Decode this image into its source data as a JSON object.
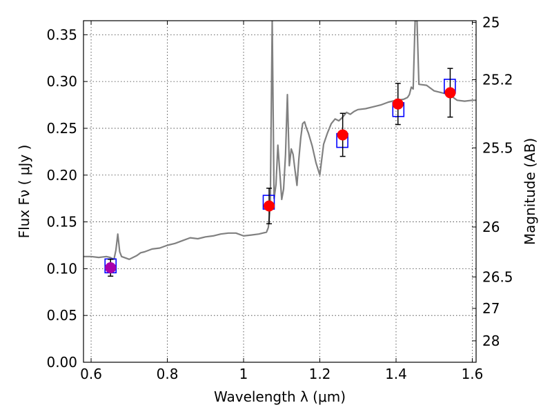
{
  "chart_data": {
    "type": "scatter",
    "title": "",
    "xlabel": "Wavelength  λ (μm)",
    "ylabel": "Flux  Fν  ( μJy )",
    "ylabel_right": "Magnitude (AB)",
    "xlim": [
      0.58,
      1.61
    ],
    "ylim": [
      0.0,
      0.365
    ],
    "grid": true,
    "x_ticks": [
      0.6,
      0.8,
      1.0,
      1.2,
      1.4,
      1.6
    ],
    "x_tick_labels": [
      "0.6",
      "0.8",
      "1",
      "1.2",
      "1.4",
      "1.6"
    ],
    "y_ticks": [
      0.0,
      0.05,
      0.1,
      0.15,
      0.2,
      0.25,
      0.3,
      0.35
    ],
    "y_tick_labels": [
      "0.00",
      "0.05",
      "0.10",
      "0.15",
      "0.20",
      "0.25",
      "0.30",
      "0.35"
    ],
    "right_ticks": [
      25,
      25.2,
      25.5,
      26,
      26.5,
      27,
      28
    ],
    "right_tick_labels": [
      "25",
      "25.2",
      "25.5",
      "26",
      "26.5",
      "27",
      "28"
    ],
    "colors": {
      "spectrum": "#808080",
      "model_box": "#0000ff",
      "observed": "#ff0000",
      "observed_first": "#aa00aa",
      "errorbar": "#000000"
    },
    "series": [
      {
        "kind": "line",
        "x": [
          0.58,
          0.6,
          0.62,
          0.64,
          0.65,
          0.66,
          0.665,
          0.67,
          0.675,
          0.68,
          0.7,
          0.72,
          0.73,
          0.74,
          0.76,
          0.78,
          0.8,
          0.82,
          0.84,
          0.86,
          0.88,
          0.9,
          0.92,
          0.94,
          0.96,
          0.98,
          1.0,
          1.02,
          1.04,
          1.06,
          1.065,
          1.07,
          1.075,
          1.08,
          1.085,
          1.09,
          1.1,
          1.105,
          1.11,
          1.115,
          1.12,
          1.125,
          1.13,
          1.135,
          1.14,
          1.145,
          1.15,
          1.155,
          1.16,
          1.165,
          1.17,
          1.18,
          1.19,
          1.2,
          1.21,
          1.22,
          1.23,
          1.24,
          1.25,
          1.26,
          1.27,
          1.28,
          1.29,
          1.3,
          1.32,
          1.34,
          1.36,
          1.38,
          1.4,
          1.42,
          1.43,
          1.435,
          1.44,
          1.445,
          1.45,
          1.455,
          1.46,
          1.48,
          1.5,
          1.52,
          1.54,
          1.56,
          1.58,
          1.6,
          1.61
        ],
        "y": [
          0.113,
          0.113,
          0.112,
          0.113,
          0.112,
          0.11,
          0.12,
          0.137,
          0.118,
          0.113,
          0.11,
          0.114,
          0.117,
          0.118,
          0.121,
          0.122,
          0.125,
          0.127,
          0.13,
          0.133,
          0.132,
          0.134,
          0.135,
          0.137,
          0.138,
          0.138,
          0.135,
          0.136,
          0.137,
          0.139,
          0.144,
          0.166,
          0.365,
          0.175,
          0.19,
          0.232,
          0.174,
          0.185,
          0.222,
          0.286,
          0.21,
          0.228,
          0.222,
          0.205,
          0.189,
          0.217,
          0.24,
          0.255,
          0.257,
          0.25,
          0.245,
          0.231,
          0.213,
          0.2,
          0.233,
          0.245,
          0.255,
          0.26,
          0.258,
          0.262,
          0.267,
          0.265,
          0.268,
          0.27,
          0.271,
          0.273,
          0.275,
          0.278,
          0.28,
          0.281,
          0.283,
          0.286,
          0.294,
          0.292,
          0.365,
          0.365,
          0.297,
          0.296,
          0.29,
          0.288,
          0.286,
          0.28,
          0.279,
          0.28,
          0.28
        ]
      },
      {
        "kind": "model_boxes",
        "x": [
          0.651,
          1.066,
          1.259,
          1.406,
          1.541
        ],
        "y": [
          0.103,
          0.171,
          0.237,
          0.27,
          0.295
        ]
      },
      {
        "kind": "observed_points",
        "x": [
          0.651,
          1.067,
          1.26,
          1.405,
          1.542
        ],
        "y": [
          0.101,
          0.167,
          0.243,
          0.276,
          0.288
        ],
        "yerr": [
          0.009,
          0.019,
          0.023,
          0.022,
          0.026
        ]
      }
    ]
  }
}
